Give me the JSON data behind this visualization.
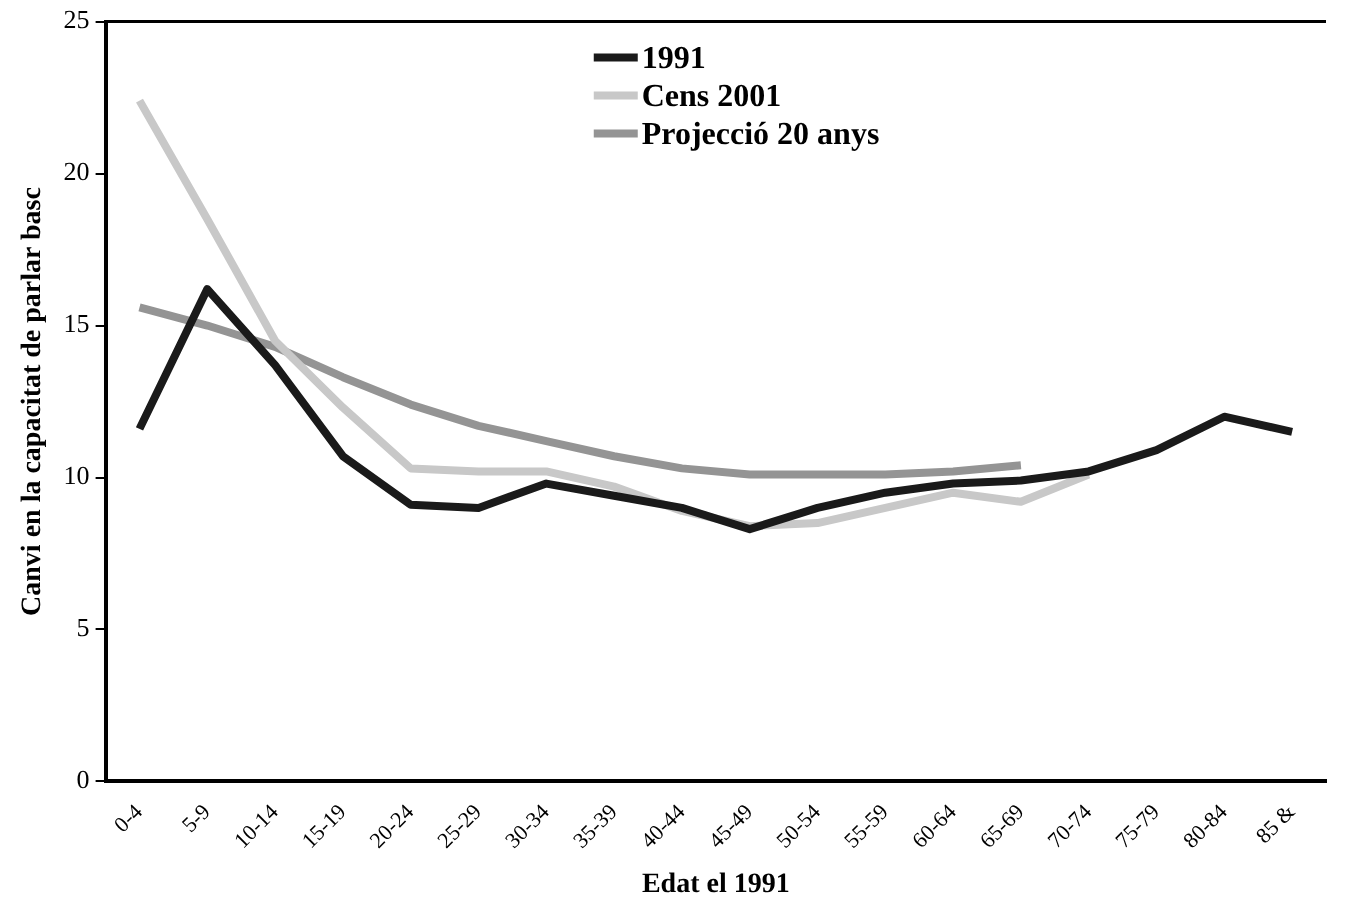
{
  "chart_data": {
    "type": "line",
    "xlabel": "Edat el 1991",
    "ylabel": "Canvi en la capacitat de parlar basc",
    "categories": [
      "0-4",
      "5-9",
      "10-14",
      "15-19",
      "20-24",
      "25-29",
      "30-34",
      "35-39",
      "40-44",
      "45-49",
      "50-54",
      "55-59",
      "60-64",
      "65-69",
      "70-74",
      "75-79",
      "80-84",
      "85 &"
    ],
    "series": [
      {
        "name": "1991",
        "color": "#1a1a1a",
        "values": [
          11.6,
          16.2,
          13.7,
          10.7,
          9.1,
          9.0,
          9.8,
          9.4,
          9.0,
          8.3,
          9.0,
          9.5,
          9.8,
          9.9,
          10.2,
          10.9,
          12.0,
          11.5
        ]
      },
      {
        "name": "Cens 2001",
        "color": "#c8c8c8",
        "values": [
          22.4,
          18.5,
          14.5,
          12.3,
          10.3,
          10.2,
          10.2,
          9.7,
          8.9,
          8.4,
          8.5,
          9.0,
          9.5,
          9.2,
          10.1,
          null,
          null,
          null
        ]
      },
      {
        "name": "Projecció 20 anys",
        "color": "#949494",
        "values": [
          15.6,
          15.0,
          14.3,
          13.3,
          12.4,
          11.7,
          11.2,
          10.7,
          10.3,
          10.1,
          10.1,
          10.1,
          10.2,
          10.4,
          null,
          null,
          null,
          null
        ]
      }
    ],
    "ylim": [
      0,
      25
    ],
    "yticks": [
      0,
      5,
      10,
      15,
      20,
      25
    ],
    "grid": false,
    "legend": "top",
    "marker": "none",
    "line_style": "solid"
  }
}
